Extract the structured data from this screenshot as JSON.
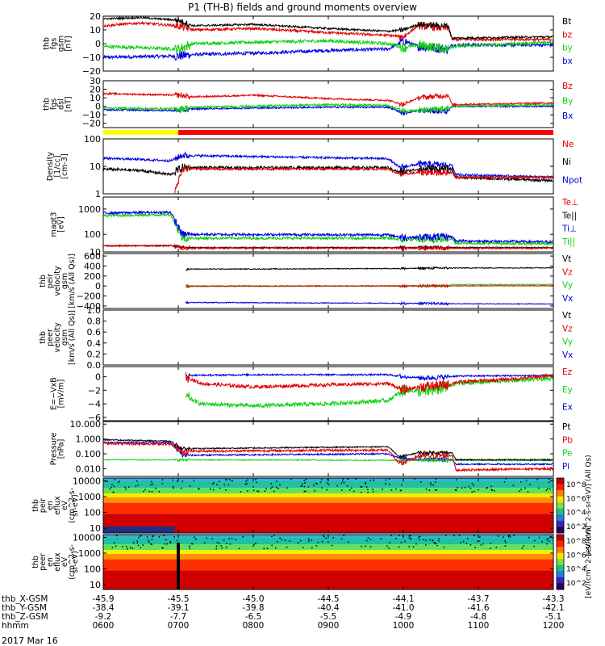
{
  "title": "P1 (TH-B) fields and ground moments overview",
  "date_label": "2017 Mar 16",
  "colors": {
    "black": "#000000",
    "red": "#e00000",
    "green": "#10d010",
    "blue": "#0000e0",
    "yellow": "#ffff00",
    "bar_red": "#ff0000"
  },
  "chart_data": [
    {
      "type": "line",
      "id": "fgs_gsm",
      "ylabel": [
        "thb",
        "fgs",
        "gsm",
        "[nT]"
      ],
      "ylim": [
        -20,
        20
      ],
      "yticks": [
        "20",
        "10",
        "0",
        "−10",
        "−20"
      ],
      "series": [
        {
          "name": "Bt",
          "color": "black"
        },
        {
          "name": "bz",
          "color": "red"
        },
        {
          "name": "by",
          "color": "green"
        },
        {
          "name": "bx",
          "color": "blue"
        }
      ]
    },
    {
      "type": "line",
      "id": "fgs_dsl",
      "ylabel": [
        "thb",
        "fgs",
        "dsl",
        "[nT]"
      ],
      "ylim": [
        -25,
        30
      ],
      "yticks": [
        "30",
        "20",
        "10",
        "0",
        "−10",
        "−20"
      ],
      "series": [
        {
          "name": "Bz",
          "color": "red"
        },
        {
          "name": "By",
          "color": "green"
        },
        {
          "name": "Bx",
          "color": "blue"
        }
      ]
    },
    {
      "type": "line",
      "id": "density",
      "ylabel": [
        "Density",
        "[1/cc]",
        "[cm-3]"
      ],
      "scale": "log",
      "ylim": [
        1,
        100
      ],
      "yticks": [
        "100",
        "10",
        "1"
      ],
      "series": [
        {
          "name": "Ne",
          "color": "red"
        },
        {
          "name": "Ni",
          "color": "black"
        },
        {
          "name": "Npot",
          "color": "blue"
        }
      ]
    },
    {
      "type": "line",
      "id": "temperature",
      "ylabel": [
        "magt3",
        "[eV]"
      ],
      "scale": "log",
      "ylim": [
        20,
        3000
      ],
      "yticks": [
        "1000",
        "100",
        "10"
      ],
      "series": [
        {
          "name": "Te⊥",
          "color": "red"
        },
        {
          "name": "Te||",
          "color": "black"
        },
        {
          "name": "Ti⊥",
          "color": "blue"
        },
        {
          "name": "Ti||",
          "color": "green"
        }
      ]
    },
    {
      "type": "line",
      "id": "peir_velocity",
      "ylabel": [
        "thb",
        "peir",
        "velocity",
        "gsm",
        "[km/s (All Qs)]"
      ],
      "ylim": [
        -450,
        650
      ],
      "yticks": [
        "600",
        "400",
        "200",
        "0",
        "−200",
        "−400"
      ],
      "series": [
        {
          "name": "Vt",
          "color": "black"
        },
        {
          "name": "Vz",
          "color": "red"
        },
        {
          "name": "Vy",
          "color": "green"
        },
        {
          "name": "Vx",
          "color": "blue"
        }
      ]
    },
    {
      "type": "line",
      "id": "peer_velocity",
      "ylabel": [
        "thb",
        "peer",
        "velocity",
        "gsm",
        "[km/s (All Qs)]"
      ],
      "ylim": [
        0,
        1
      ],
      "yticks": [
        "1.0",
        "0.8",
        "0.6",
        "0.4",
        "0.2",
        "0.0"
      ],
      "series": [
        {
          "name": "Vt",
          "color": "black"
        },
        {
          "name": "Vz",
          "color": "red"
        },
        {
          "name": "Vy",
          "color": "green"
        },
        {
          "name": "Vx",
          "color": "blue"
        }
      ]
    },
    {
      "type": "line",
      "id": "efield",
      "ylabel": [
        "E=−VxB",
        "[mV/m]"
      ],
      "ylim": [
        -6.5,
        1.5
      ],
      "yticks": [
        "0",
        "−2",
        "−4",
        "−6"
      ],
      "series": [
        {
          "name": "Ez",
          "color": "red"
        },
        {
          "name": "Ey",
          "color": "green"
        },
        {
          "name": "Ex",
          "color": "blue"
        }
      ]
    },
    {
      "type": "line",
      "id": "pressure",
      "ylabel": [
        "Pressure",
        "[nPa]"
      ],
      "scale": "log",
      "ylim": [
        0.003,
        15
      ],
      "yticks": [
        "10.000",
        "1.000",
        "0.100",
        "0.010"
      ],
      "series": [
        {
          "name": "Pt",
          "color": "black"
        },
        {
          "name": "Pb",
          "color": "red"
        },
        {
          "name": "Pe",
          "color": "green"
        },
        {
          "name": "Pi",
          "color": "blue"
        }
      ]
    },
    {
      "type": "heatmap",
      "id": "peir_eflux",
      "ylabel": [
        "thb",
        "peir",
        "en",
        "eflux",
        "eV",
        "(cm^2-s-",
        "sr-eV)"
      ],
      "scale": "log",
      "ylim": [
        5,
        15000
      ],
      "yticks": [
        "10000",
        "1000",
        "100",
        "10"
      ],
      "colorbar": {
        "ticks": [
          "10^8",
          "10^6",
          "10^4",
          "10^2"
        ],
        "label": "[eV/(cm^2-s-sr-eV)] (All Qs)"
      }
    },
    {
      "type": "heatmap",
      "id": "peer_eflux",
      "ylabel": [
        "thb",
        "peer",
        "en",
        "eflux",
        "eV",
        "(cm^2-s-",
        "sr-eV)"
      ],
      "scale": "log",
      "ylim": [
        5,
        15000
      ],
      "yticks": [
        "10000",
        "1000",
        "100",
        "10"
      ],
      "colorbar": {
        "ticks": [
          "10^8",
          "10^6",
          "10^4",
          "10^2"
        ],
        "label": "[eV/(cm^2-s-sr-eV)]"
      }
    }
  ],
  "x_axis": {
    "row_labels": [
      "thb_X-GSM",
      "thb_Y-GSM",
      "thb_Z-GSM",
      "hhmm"
    ],
    "ticks": [
      {
        "x": "-45.9",
        "y": "-38.4",
        "z": "-9.2",
        "t": "0600"
      },
      {
        "x": "-45.5",
        "y": "-39.1",
        "z": "-7.7",
        "t": "0700"
      },
      {
        "x": "-45.0",
        "y": "-39.8",
        "z": "-6.5",
        "t": "0800"
      },
      {
        "x": "-44.5",
        "y": "-40.4",
        "z": "-5.5",
        "t": "0900"
      },
      {
        "x": "-44.1",
        "y": "-41.0",
        "z": "-4.9",
        "t": "1000"
      },
      {
        "x": "-43.7",
        "y": "-41.6",
        "z": "-4.8",
        "t": "1100"
      },
      {
        "x": "-43.3",
        "y": "-42.1",
        "z": "-5.1",
        "t": "1200"
      }
    ]
  }
}
